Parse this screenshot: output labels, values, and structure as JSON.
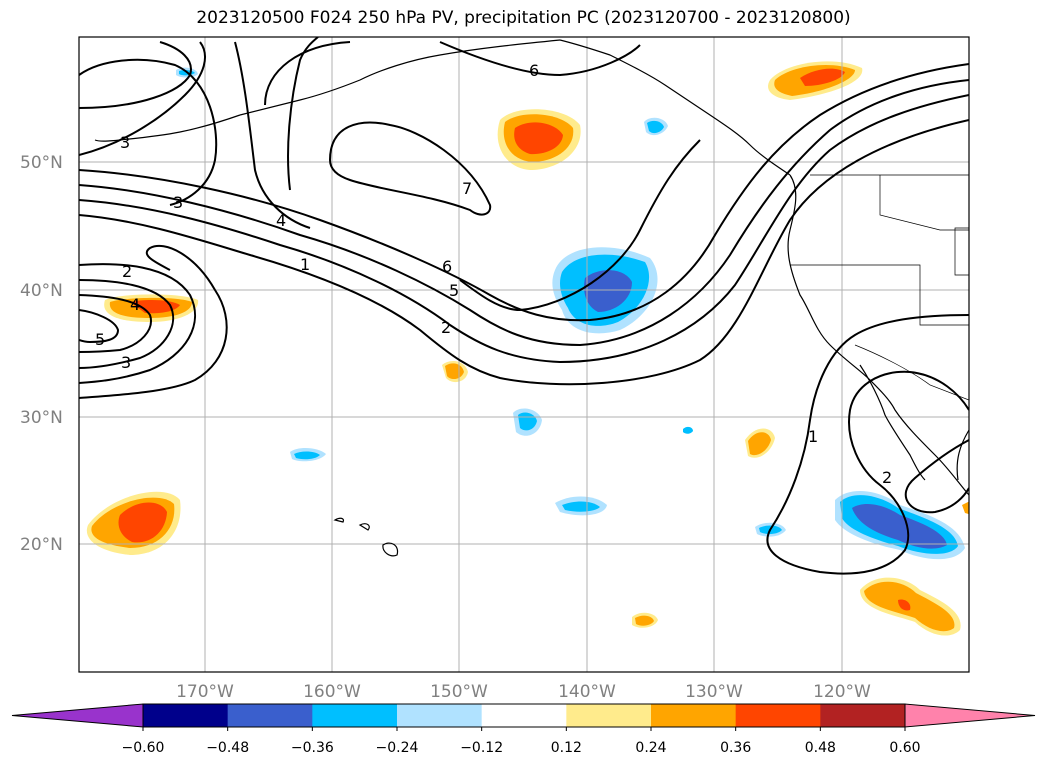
{
  "title": "2023120500 F024 250 hPa PV, precipitation PC (2023120700 - 2023120800)",
  "latitude_labels": [
    "50°N",
    "40°N",
    "30°N",
    "20°N"
  ],
  "longitude_labels": [
    "170°W",
    "160°W",
    "150°W",
    "140°W",
    "130°W",
    "120°W"
  ],
  "pv_contour_labels": [
    "1",
    "2",
    "3",
    "4",
    "5",
    "6",
    "7"
  ],
  "colorbar": {
    "tick_labels": [
      "−0.60",
      "−0.48",
      "−0.36",
      "−0.24",
      "−0.12",
      "0.12",
      "0.24",
      "0.36",
      "0.48",
      "0.60"
    ],
    "colors": [
      "#9933cc",
      "#00008b",
      "#3a5fcd",
      "#00bfff",
      "#b0e2ff",
      "#ffffff",
      "#ffeb8c",
      "#ffa500",
      "#ff4500",
      "#b22222",
      "#ff82ab"
    ]
  }
}
